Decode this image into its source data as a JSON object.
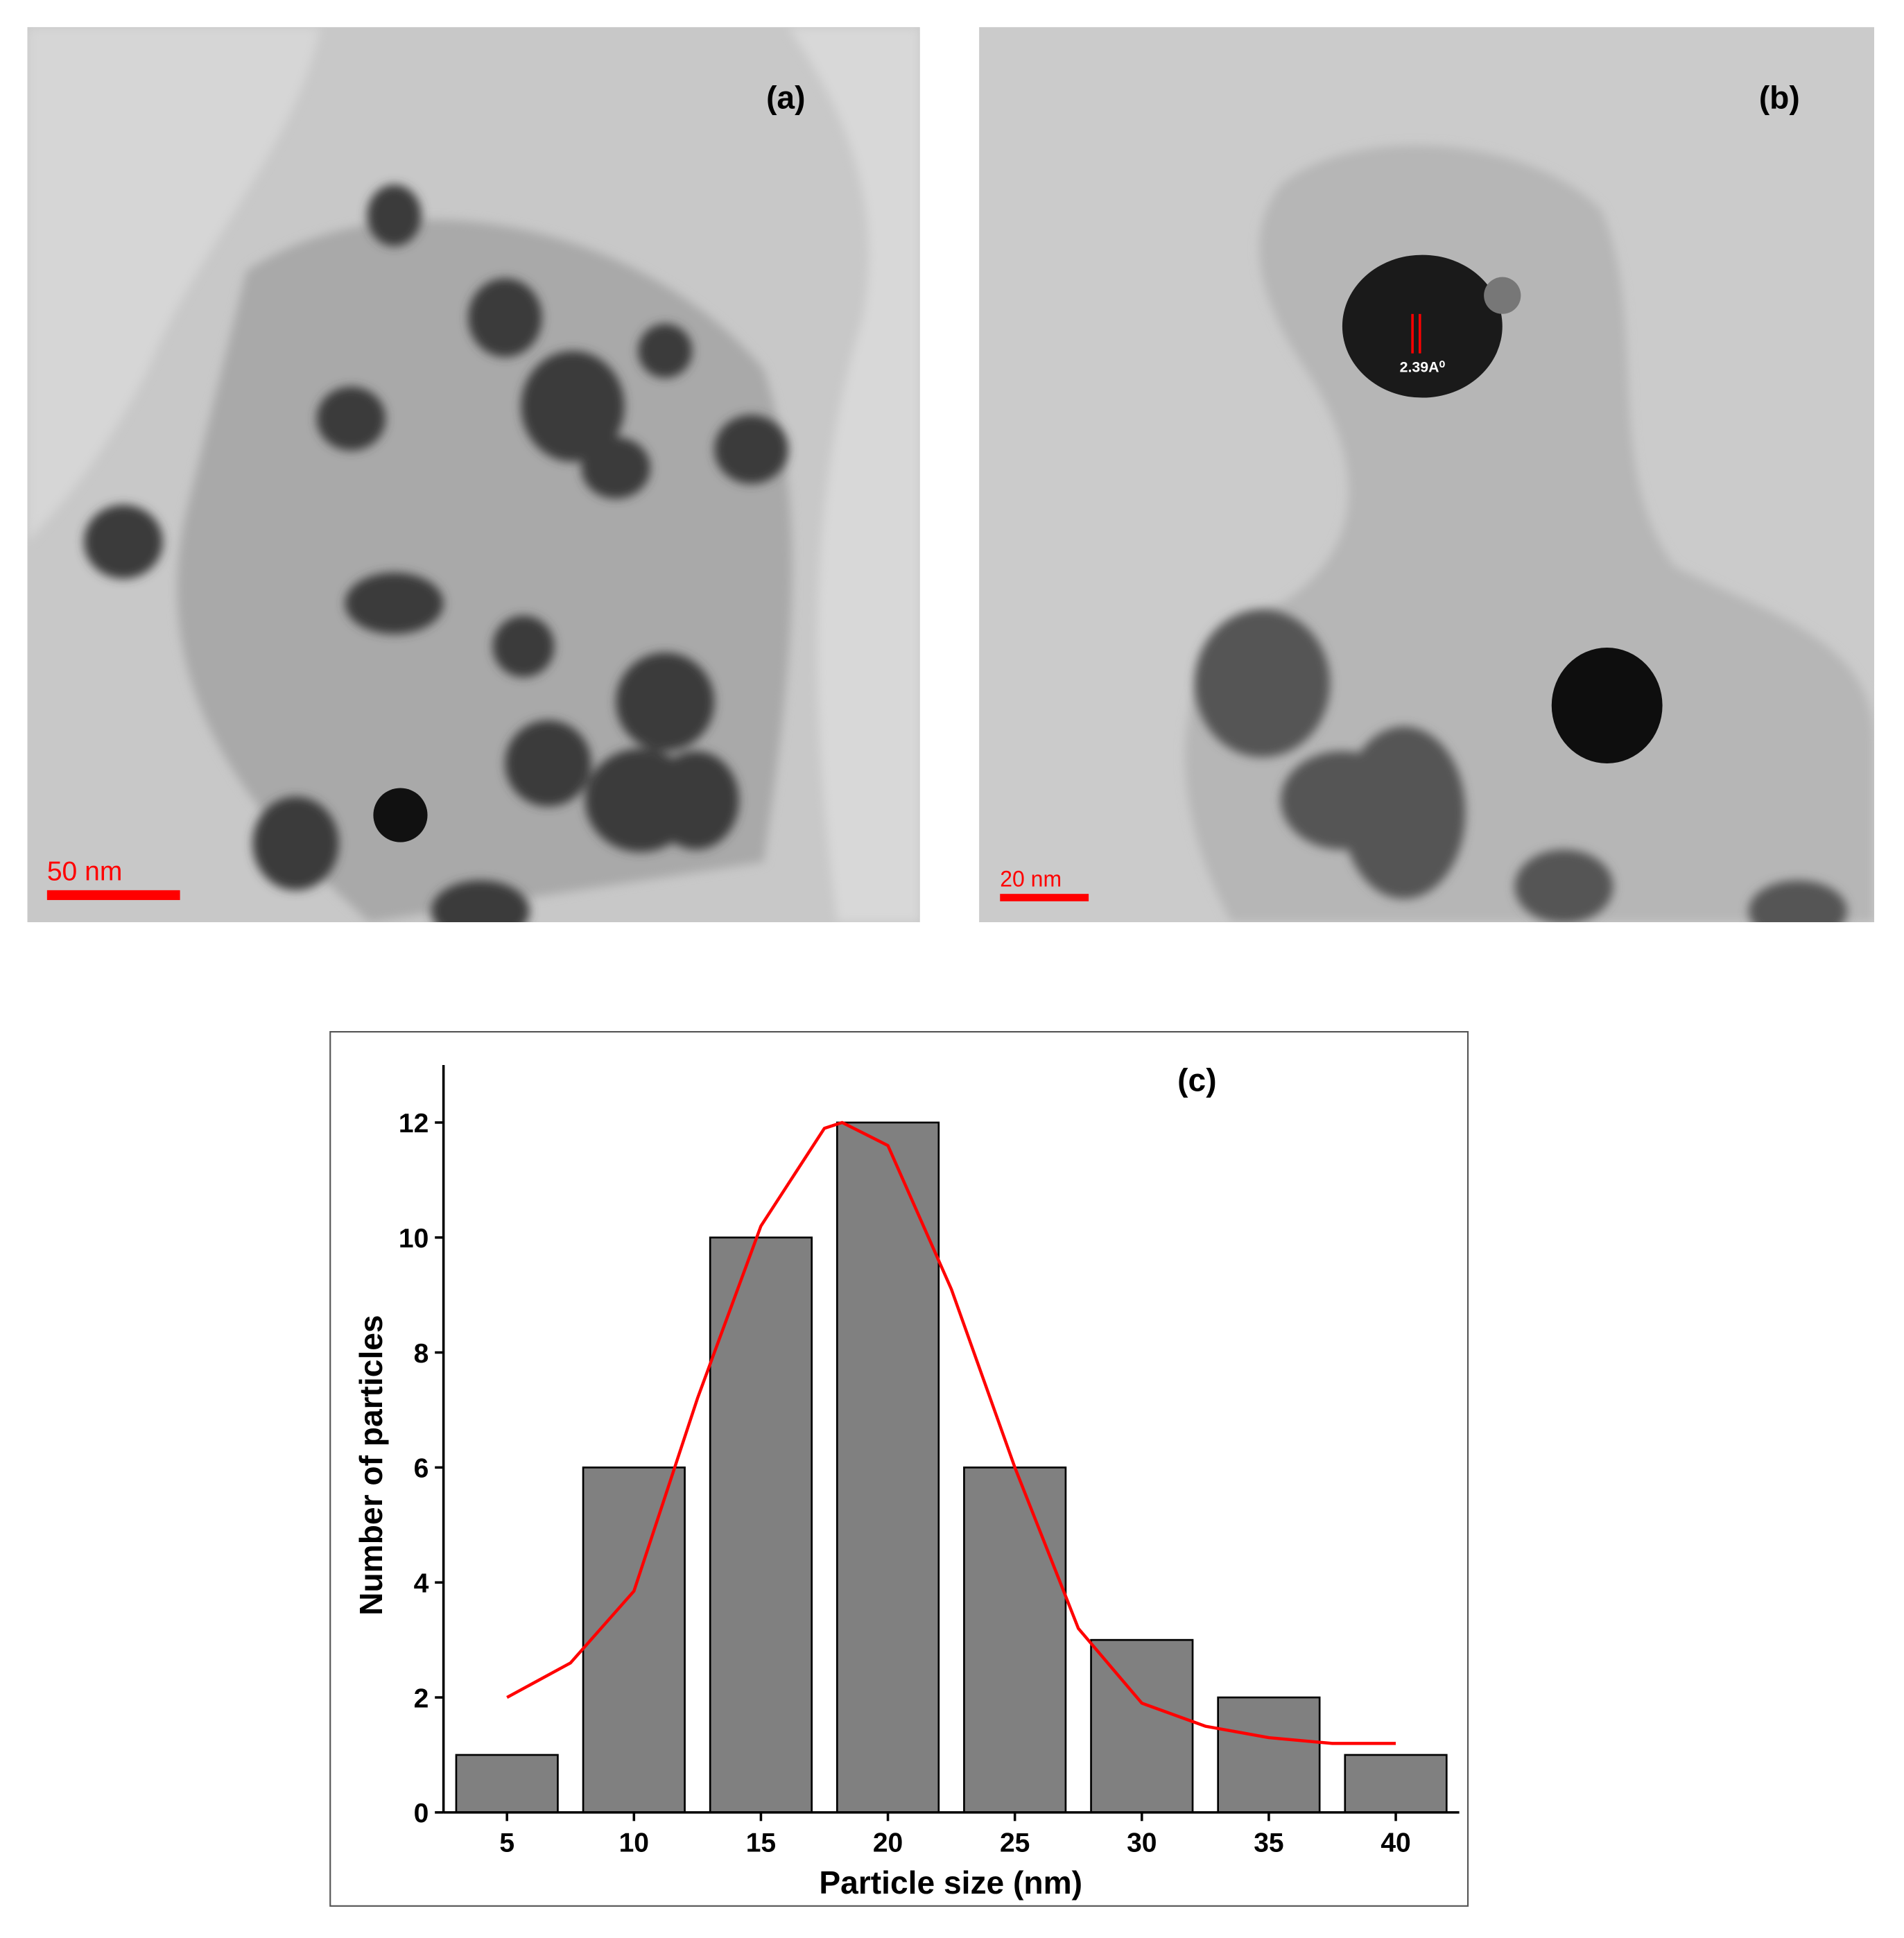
{
  "panels": {
    "a": {
      "label": "(a)",
      "scale_bar": "50 nm"
    },
    "b": {
      "label": "(b)",
      "scale_bar": "20 nm",
      "annotation": "2.39A⁰"
    }
  },
  "chart_data": {
    "type": "bar",
    "annotation": "(c)",
    "x_label": "Particle size (nm)",
    "y_label": "Number of particles",
    "categories": [
      5,
      10,
      15,
      20,
      25,
      30,
      35,
      40
    ],
    "values": [
      1,
      6,
      10,
      12,
      6,
      3,
      2,
      1
    ],
    "color": "#808080",
    "xlim": [
      2.5,
      42.5
    ],
    "ylim": [
      0,
      13
    ],
    "yticks": [
      0,
      2,
      4,
      6,
      8,
      10,
      12
    ],
    "fit_curve": {
      "color": "#ff0000",
      "x": [
        5,
        7.5,
        10,
        12.5,
        15,
        17.5,
        18.2,
        20,
        22.5,
        25,
        27.5,
        30,
        32.5,
        35,
        37.5,
        40
      ],
      "values": [
        2.0,
        2.6,
        3.85,
        7.2,
        10.2,
        11.9,
        12.0,
        11.6,
        9.1,
        6.0,
        3.2,
        1.9,
        1.5,
        1.3,
        1.2,
        1.2
      ]
    }
  }
}
